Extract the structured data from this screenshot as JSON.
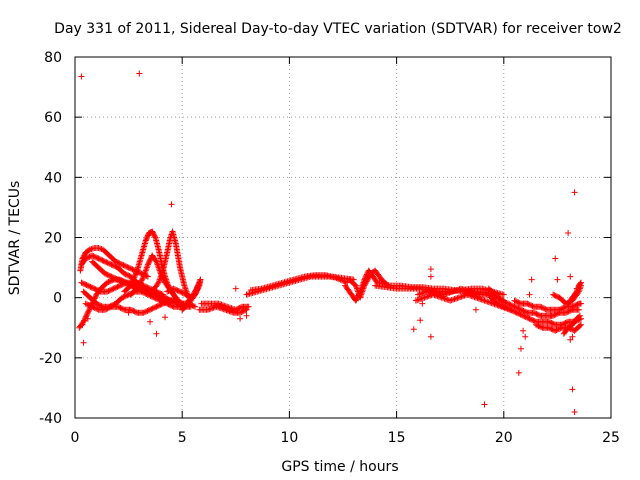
{
  "colors": {
    "series": "#ff0000",
    "grid": "#a0a0a0",
    "axis": "#000000",
    "background": "#ffffff"
  },
  "chart_data": {
    "type": "scatter",
    "title": "Day 331 of 2011, Sidereal Day-to-day VTEC variation (SDTVAR) for receiver tow2",
    "xlabel": "GPS time / hours",
    "ylabel": "SDTVAR / TECUs",
    "xlim": [
      0,
      25
    ],
    "ylim": [
      -40,
      80
    ],
    "xticks": [
      0,
      5,
      10,
      15,
      20,
      25
    ],
    "yticks": [
      -40,
      -20,
      0,
      20,
      40,
      60,
      80
    ],
    "grid": true,
    "marker": "plus",
    "series": [
      {
        "name": "SDTVAR",
        "points": [
          [
            0.3,
            73.5
          ],
          [
            3.0,
            74.5
          ],
          [
            4.5,
            31.0
          ],
          [
            0.4,
            -15.0
          ],
          [
            0.35,
            -9.0
          ],
          [
            0.6,
            -7.0
          ],
          [
            3.5,
            -8.0
          ],
          [
            3.8,
            -12.0
          ],
          [
            4.2,
            -6.5
          ],
          [
            2.5,
            -5.0
          ],
          [
            7.5,
            3.0
          ],
          [
            7.7,
            -7.0
          ],
          [
            8.0,
            -6.0
          ],
          [
            15.8,
            -10.5
          ],
          [
            16.1,
            -7.5
          ],
          [
            16.6,
            9.5
          ],
          [
            16.6,
            7.0
          ],
          [
            16.6,
            -13.0
          ],
          [
            16.2,
            -2.0
          ],
          [
            19.1,
            -35.5
          ],
          [
            18.7,
            -4.0
          ],
          [
            20.7,
            -25.0
          ],
          [
            20.8,
            -17.0
          ],
          [
            20.9,
            -11.0
          ],
          [
            21.0,
            -13.0
          ],
          [
            21.3,
            6.0
          ],
          [
            21.2,
            1.0
          ],
          [
            22.4,
            13.0
          ],
          [
            22.5,
            6.0
          ],
          [
            23.0,
            21.5
          ],
          [
            23.1,
            7.0
          ],
          [
            23.3,
            35.0
          ],
          [
            23.2,
            -30.5
          ],
          [
            23.3,
            -38.0
          ],
          [
            23.1,
            -14.0
          ],
          [
            23.4,
            3.0
          ],
          [
            23.2,
            -13.0
          ],
          [
            22.2,
            -6.0
          ]
        ],
        "traces": [
          {
            "x": [
              0.25,
              0.35,
              0.5,
              0.7,
              0.9,
              1.1,
              1.3,
              1.6,
              1.9,
              2.2,
              2.5,
              2.8,
              3.1,
              3.4
            ],
            "y": [
              9,
              13,
              15,
              16,
              16.5,
              16.5,
              16,
              14,
              12,
              11,
              10,
              9,
              8,
              7
            ]
          },
          {
            "x": [
              0.3,
              0.5,
              0.8,
              1.1,
              1.4,
              1.7,
              2.0,
              2.3,
              2.6,
              2.9,
              3.2,
              3.5,
              3.8,
              4.1
            ],
            "y": [
              11,
              13,
              14,
              13,
              12,
              11,
              10,
              8,
              7,
              5,
              4,
              3,
              2,
              1
            ]
          },
          {
            "x": [
              0.2,
              0.4,
              0.6,
              0.8,
              1.0,
              1.2,
              1.5,
              1.8,
              2.1,
              2.4,
              2.7,
              3.0
            ],
            "y": [
              -10,
              -8,
              -5,
              -2,
              1,
              3,
              5,
              6,
              6,
              5,
              4,
              3
            ]
          },
          {
            "x": [
              0.3,
              0.6,
              0.9,
              1.2,
              1.5,
              1.8,
              2.1,
              2.4,
              2.7,
              3.0,
              3.3,
              3.6,
              3.9,
              4.2,
              4.5,
              4.8,
              5.1,
              5.4
            ],
            "y": [
              5,
              4,
              3,
              2,
              2,
              3,
              4,
              5,
              5,
              4,
              3,
              2,
              1,
              0,
              -1,
              -2,
              -3,
              -3
            ]
          },
          {
            "x": [
              0.4,
              0.7,
              1.0,
              1.3,
              1.6,
              1.9,
              2.2,
              2.5,
              2.8,
              3.1,
              3.4,
              3.7,
              4.0,
              4.3,
              4.6,
              4.9
            ],
            "y": [
              2,
              0,
              -2,
              -3,
              -3,
              -2,
              0,
              1,
              2,
              2,
              1,
              0,
              -1,
              -2,
              -3,
              -3
            ]
          },
          {
            "x": [
              0.5,
              0.8,
              1.1,
              1.4,
              1.7,
              2.0,
              2.3,
              2.6,
              2.9,
              3.2,
              3.5,
              3.8,
              4.1,
              4.4,
              4.7,
              5.0,
              5.3,
              5.6
            ],
            "y": [
              -2,
              -3,
              -4,
              -4,
              -3,
              -3,
              -4,
              -4,
              -5,
              -5,
              -4,
              -3,
              -2,
              -1,
              -1,
              -2,
              -2,
              -3
            ]
          },
          {
            "x": [
              0.8,
              1.1,
              1.4,
              1.7,
              2.0,
              2.3,
              2.6,
              2.9,
              3.2,
              3.5,
              3.8,
              4.1,
              4.4
            ],
            "y": [
              12,
              10,
              8,
              7,
              6,
              5,
              4,
              3,
              3,
              2,
              1,
              0,
              -1
            ]
          },
          {
            "x": [
              2.3,
              2.6,
              2.9,
              3.1,
              3.3,
              3.45,
              3.6,
              3.75,
              3.9,
              4.05,
              4.2,
              4.35,
              4.5,
              4.7,
              4.9,
              5.1
            ],
            "y": [
              2,
              4,
              9,
              14,
              19,
              21.5,
              22,
              20,
              16,
              11,
              7,
              4,
              2,
              0,
              -2,
              -3
            ]
          },
          {
            "x": [
              2.6,
              2.9,
              3.2,
              3.4,
              3.6,
              3.8,
              4.0,
              4.2,
              4.4,
              4.6,
              4.8,
              5.0
            ],
            "y": [
              1,
              3,
              7,
              11,
              14,
              12,
              8,
              5,
              3,
              1,
              -1,
              -2
            ]
          },
          {
            "x": [
              3.6,
              3.9,
              4.1,
              4.3,
              4.45,
              4.55,
              4.7,
              4.9,
              5.1,
              5.3
            ],
            "y": [
              2,
              5,
              9,
              15,
              20,
              22,
              18,
              10,
              4,
              0
            ]
          },
          {
            "x": [
              4.3,
              4.6,
              4.9,
              5.2,
              5.4,
              5.6,
              5.75,
              5.85
            ],
            "y": [
              2,
              3,
              2,
              1,
              0,
              1,
              4,
              6
            ]
          },
          {
            "x": [
              5.0,
              5.3,
              5.6,
              5.8,
              5.85,
              5.8,
              5.6,
              5.3,
              5.0
            ],
            "y": [
              -4,
              -1,
              2,
              5,
              6,
              4,
              1,
              -2,
              -4
            ]
          },
          {
            "x": [
              5.8,
              6.2,
              6.6,
              7.0,
              7.4,
              7.7,
              8.0
            ],
            "y": [
              -4,
              -4,
              -3,
              -4,
              -5,
              -5,
              -4
            ]
          },
          {
            "x": [
              5.9,
              6.3,
              6.7,
              7.1,
              7.5,
              7.8,
              8.1
            ],
            "y": [
              -2,
              -2,
              -2,
              -3,
              -4,
              -3,
              -3
            ]
          },
          {
            "x": [
              8.0,
              8.5,
              9.0,
              9.5,
              10.0,
              10.5,
              11.0,
              11.5,
              12.0,
              12.5,
              13.0
            ],
            "y": [
              1,
              2,
              3,
              4,
              5,
              6,
              7,
              7,
              7,
              6.5,
              6
            ]
          },
          {
            "x": [
              8.2,
              8.7,
              9.2,
              9.7,
              10.2,
              10.7,
              11.2,
              11.7,
              12.2,
              12.7
            ],
            "y": [
              2.5,
              3,
              4,
              5,
              6,
              7,
              7.5,
              7.5,
              6.5,
              5
            ]
          },
          {
            "x": [
              12.6,
              12.9,
              13.1,
              13.3,
              13.5,
              13.7,
              13.9,
              14.1
            ],
            "y": [
              4,
              1,
              -1,
              2,
              6,
              9,
              7,
              5
            ]
          },
          {
            "x": [
              12.8,
              13.1,
              13.3,
              13.5,
              13.8,
              14.0,
              14.3,
              14.6
            ],
            "y": [
              6,
              4,
              0,
              4,
              8,
              9,
              6,
              4
            ]
          },
          {
            "x": [
              14.0,
              14.5,
              15.0,
              15.5,
              16.0,
              16.5,
              17.0,
              17.5,
              18.0,
              18.5,
              19.0,
              19.5,
              20.0
            ],
            "y": [
              4,
              3.5,
              3,
              3,
              3,
              2.5,
              2,
              2,
              2.5,
              3,
              3,
              2,
              1
            ]
          },
          {
            "x": [
              14.2,
              14.7,
              15.2,
              15.7,
              16.2,
              16.7,
              17.2,
              17.7,
              18.2,
              18.7,
              19.2,
              19.7
            ],
            "y": [
              5,
              4,
              4,
              3.5,
              3.5,
              3,
              3,
              2.5,
              2,
              2,
              1.5,
              1
            ]
          },
          {
            "x": [
              15.9,
              16.3,
              16.7,
              17.1,
              17.5,
              17.9,
              18.3,
              18.7,
              19.1,
              19.5,
              19.9,
              20.3
            ],
            "y": [
              -1,
              0,
              1,
              0,
              -1,
              0,
              1,
              0,
              -1,
              -2,
              -3,
              -4
            ]
          },
          {
            "x": [
              16.0,
              16.4,
              16.8,
              17.2,
              17.6,
              18.0,
              18.4,
              18.8,
              19.2,
              19.6,
              20.0
            ],
            "y": [
              1,
              2,
              2,
              1,
              2,
              3,
              2,
              1,
              1,
              0,
              -1
            ]
          },
          {
            "x": [
              19.3,
              19.6,
              19.9,
              20.2,
              20.5,
              20.8,
              21.1,
              21.4,
              21.7,
              22.0,
              22.3,
              22.6,
              22.9,
              23.2,
              23.5
            ],
            "y": [
              3,
              1,
              -1,
              -2,
              -3,
              -4,
              -5,
              -5,
              -6,
              -6,
              -6,
              -5,
              -5,
              -4,
              -4
            ]
          },
          {
            "x": [
              19.4,
              19.7,
              20.0,
              20.3,
              20.6,
              20.9,
              21.2,
              21.5,
              21.8,
              22.1,
              22.4,
              22.7,
              23.0,
              23.3,
              23.6
            ],
            "y": [
              0,
              -2,
              -3,
              -4,
              -5,
              -6,
              -7,
              -8,
              -8,
              -8,
              -9,
              -9,
              -8,
              -8,
              -7
            ]
          },
          {
            "x": [
              20.5,
              20.8,
              21.1,
              21.4,
              21.7,
              22.0,
              22.3,
              22.6,
              22.9,
              23.2,
              23.5,
              23.6
            ],
            "y": [
              -1,
              -2,
              -2,
              -3,
              -3,
              -4,
              -4,
              -4,
              -3,
              -3,
              -2,
              -2
            ]
          },
          {
            "x": [
              21.5,
              21.8,
              22.1,
              22.4,
              22.7,
              23.0,
              23.3,
              23.6
            ],
            "y": [
              -9,
              -10,
              -10,
              -11,
              -10,
              -10,
              -11,
              -9
            ]
          },
          {
            "x": [
              22.3,
              22.6,
              22.9,
              23.2,
              23.5,
              23.6
            ],
            "y": [
              1,
              0,
              -2,
              -1,
              2,
              4
            ]
          },
          {
            "x": [
              23.0,
              23.2,
              23.4,
              23.5,
              23.6
            ],
            "y": [
              -2,
              0,
              2,
              4,
              5
            ]
          },
          {
            "x": [
              22.8,
              23.0,
              23.2,
              23.4,
              23.55
            ],
            "y": [
              -12,
              -10,
              -9,
              -7,
              -6
            ]
          }
        ]
      }
    ]
  }
}
